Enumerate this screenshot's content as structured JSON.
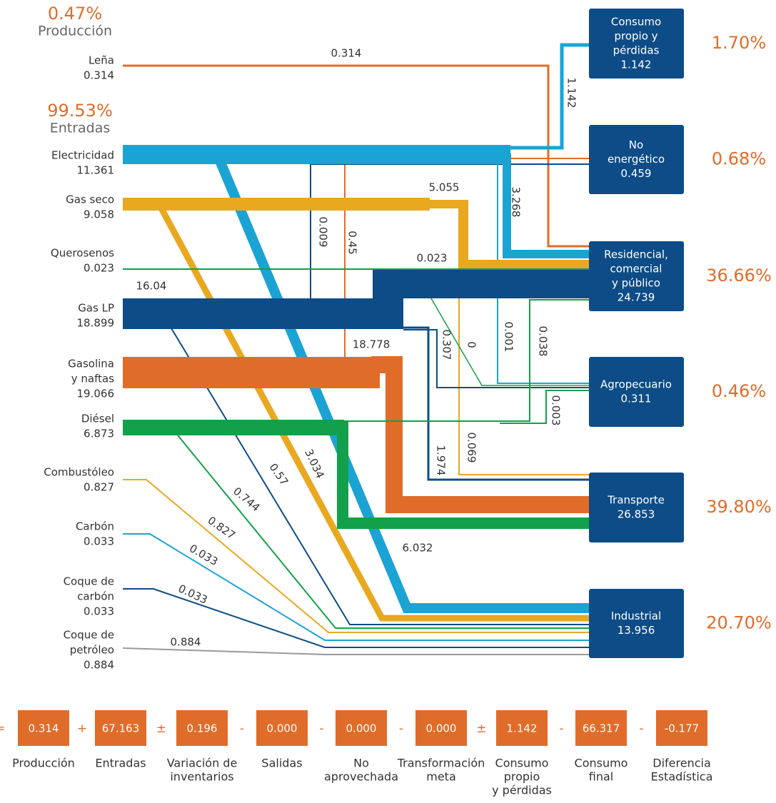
{
  "header": {
    "production_pct": "0.47%",
    "production_label": "Producción",
    "inputs_pct": "99.53%",
    "inputs_label": "Entradas"
  },
  "sources": [
    {
      "label": [
        "Leña"
      ],
      "value": "0.314"
    },
    {
      "label": [
        "Electricidad"
      ],
      "value": "11.361"
    },
    {
      "label": [
        "Gas seco"
      ],
      "value": "9.058"
    },
    {
      "label": [
        "Querosenos"
      ],
      "value": "0.023"
    },
    {
      "label": [
        "Gas LP"
      ],
      "value": "18.899"
    },
    {
      "label": [
        "Gasolina",
        "y naftas"
      ],
      "value": "19.066"
    },
    {
      "label": [
        "Diésel"
      ],
      "value": "6.873"
    },
    {
      "label": [
        "Combustóleo"
      ],
      "value": "0.827"
    },
    {
      "label": [
        "Carbón"
      ],
      "value": "0.033"
    },
    {
      "label": [
        "Coque de",
        "carbón"
      ],
      "value": "0.033"
    },
    {
      "label": [
        "Coque de",
        "petróleo"
      ],
      "value": "0.884"
    }
  ],
  "sinks": [
    {
      "label": [
        "Consumo",
        "propio y",
        "pérdidas"
      ],
      "value": "1.142",
      "share": "1.70%"
    },
    {
      "label": [
        "No",
        "energético"
      ],
      "value": "0.459",
      "share": "0.68%"
    },
    {
      "label": [
        "Residencial,",
        "comercial",
        "y público"
      ],
      "value": "24.739",
      "share": "36.66%"
    },
    {
      "label": [
        "Agropecuario"
      ],
      "value": "0.311",
      "share": "0.46%"
    },
    {
      "label": [
        "Transporte"
      ],
      "value": "26.853",
      "share": "39.80%"
    },
    {
      "label": [
        "Industrial"
      ],
      "value": "13.956",
      "share": "20.70%"
    }
  ],
  "flow_labels": [
    "0.314",
    "1.142",
    "3.268",
    "5.055",
    "0.009",
    "0.45",
    "0.023",
    "16.04",
    "18.778",
    "0.001",
    "0.038",
    "0.307",
    "0",
    "0.003",
    "1.974",
    "0.069",
    "0.57",
    "3.034",
    "0.744",
    "0.827",
    "0.033",
    "0.033",
    "6.032",
    "0.884"
  ],
  "balance": {
    "terms": [
      {
        "value": "0.314",
        "label": [
          "Producción"
        ]
      },
      {
        "value": "67.163",
        "label": [
          "Entradas"
        ]
      },
      {
        "value": "0.196",
        "label": [
          "Variación de",
          "inventarios"
        ]
      },
      {
        "value": "0.000",
        "label": [
          "Salidas"
        ]
      },
      {
        "value": "0.000",
        "label": [
          "No",
          "aprovechada"
        ]
      },
      {
        "value": "0.000",
        "label": [
          "Transformación",
          "meta"
        ]
      },
      {
        "value": "1.142",
        "label": [
          "Consumo",
          "propio",
          "y pérdidas"
        ]
      },
      {
        "value": "66.317",
        "label": [
          "Consumo",
          "final"
        ]
      },
      {
        "value": "-0.177",
        "label": [
          "Diferencia",
          "Estadística"
        ]
      }
    ],
    "operators": [
      "+",
      "±",
      "-",
      "-",
      "-",
      "±",
      "-",
      "-",
      "="
    ]
  }
}
